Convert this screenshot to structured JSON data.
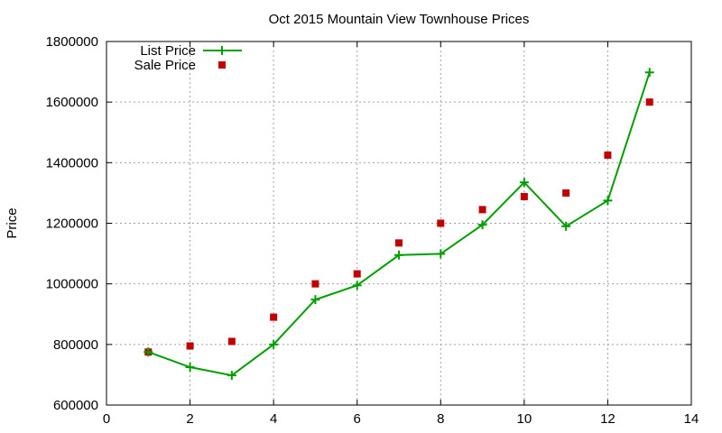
{
  "chart_data": {
    "type": "line",
    "title": "Oct 2015 Mountain View Townhouse Prices",
    "xlabel": "",
    "ylabel": "Price",
    "xlim": [
      0,
      14
    ],
    "ylim": [
      600000,
      1800000
    ],
    "xticks": [
      0,
      2,
      4,
      6,
      8,
      10,
      12,
      14
    ],
    "yticks": [
      600000,
      800000,
      1000000,
      1200000,
      1400000,
      1600000,
      1800000
    ],
    "grid": true,
    "legend": "top-left",
    "series": [
      {
        "name": "List Price",
        "style": "line-with-plus-markers",
        "color": "#009e00",
        "x": [
          1,
          2,
          3,
          4,
          5,
          6,
          7,
          8,
          9,
          10,
          11,
          12,
          13
        ],
        "y": [
          775000,
          725000,
          698000,
          800000,
          948000,
          995000,
          1095000,
          1099000,
          1195000,
          1335000,
          1190000,
          1275000,
          1698000
        ]
      },
      {
        "name": "Sale Price",
        "style": "square-markers",
        "color": "#c00000",
        "x": [
          1,
          2,
          3,
          4,
          5,
          6,
          7,
          8,
          9,
          10,
          11,
          12,
          13
        ],
        "y": [
          775000,
          795000,
          810000,
          890000,
          1000000,
          1033000,
          1135000,
          1200000,
          1245000,
          1288000,
          1300000,
          1425000,
          1600000
        ]
      }
    ]
  }
}
